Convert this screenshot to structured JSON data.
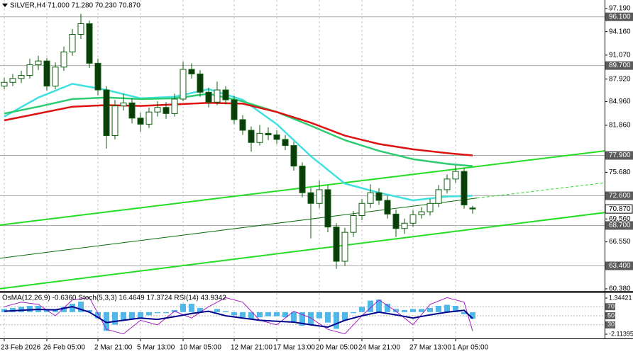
{
  "chart_data": [
    {
      "type": "candlestick",
      "title": "SILVER,H4  71.000 71.280 70.230 70.870",
      "categories": [
        "23 Feb 2026",
        null,
        null,
        null,
        null,
        "26 Feb 05:00",
        null,
        null,
        null,
        null,
        null,
        "2 Mar 21:00",
        null,
        null,
        null,
        null,
        "5 Mar 13:00",
        null,
        null,
        null,
        null,
        "10 Mar 05:00",
        null,
        null,
        null,
        null,
        null,
        "12 Mar 21:00",
        null,
        null,
        null,
        null,
        "17 Mar 13:00",
        null,
        null,
        null,
        null,
        "20 Mar 05:00",
        null,
        null,
        null,
        null,
        "24 Mar 21:00",
        null,
        null,
        null,
        null,
        null,
        "27 Mar 13:00",
        null,
        null,
        null,
        null,
        "1 Apr 05:00",
        null,
        null
      ],
      "open": [
        87.0,
        87.5,
        88.0,
        88.4,
        89.8,
        90.3,
        87.0,
        89.5,
        91.5,
        93.8,
        95.2,
        90.0,
        86.5,
        80.5,
        84.4,
        84.8,
        82.8,
        82.0,
        83.6,
        84.2,
        83.4,
        85.3,
        89.2,
        88.6,
        86.2,
        84.9,
        86.5,
        85.2,
        82.6,
        81.2,
        79.6,
        80.8,
        80.6,
        80.0,
        79.2,
        76.5,
        73.0,
        71.6,
        73.4,
        68.5,
        64.0,
        67.8,
        70.0,
        71.6,
        73.0,
        72.0,
        70.2,
        68.3,
        69.0,
        70.1,
        70.5,
        71.6,
        73.4,
        74.8,
        75.8,
        71.0
      ],
      "high": [
        88.1,
        88.6,
        89.0,
        90.6,
        91.0,
        90.7,
        90.1,
        92.2,
        94.5,
        96.5,
        95.6,
        90.6,
        87.0,
        85.2,
        86.0,
        85.4,
        83.5,
        84.2,
        85.0,
        84.9,
        86.0,
        90.2,
        90.0,
        89.1,
        86.8,
        87.6,
        87.0,
        85.7,
        83.2,
        81.7,
        81.9,
        81.6,
        81.2,
        80.6,
        79.7,
        77.0,
        73.6,
        74.6,
        74.0,
        69.0,
        68.4,
        70.6,
        72.2,
        74.1,
        73.6,
        72.6,
        70.8,
        69.6,
        70.7,
        71.1,
        72.2,
        74.0,
        75.4,
        76.6,
        76.2,
        71.28
      ],
      "low": [
        86.6,
        87.0,
        87.4,
        88.0,
        89.1,
        86.4,
        86.6,
        89.0,
        91.0,
        93.2,
        89.4,
        85.8,
        78.8,
        80.0,
        83.8,
        82.1,
        81.0,
        81.5,
        83.0,
        82.7,
        83.0,
        85.0,
        88.0,
        85.6,
        84.2,
        84.5,
        84.6,
        82.0,
        80.6,
        78.4,
        79.2,
        79.9,
        79.4,
        78.6,
        75.9,
        72.4,
        67.0,
        71.0,
        67.8,
        63.0,
        63.4,
        67.2,
        69.4,
        71.0,
        71.4,
        69.6,
        67.2,
        67.6,
        68.5,
        69.6,
        70.0,
        71.1,
        72.9,
        74.3,
        70.9,
        70.23
      ],
      "close": [
        87.5,
        88.0,
        88.4,
        89.8,
        90.3,
        87.0,
        89.5,
        91.5,
        93.8,
        95.2,
        90.0,
        86.5,
        80.5,
        84.4,
        84.8,
        82.8,
        82.0,
        83.6,
        84.2,
        83.4,
        85.3,
        89.2,
        88.6,
        86.2,
        84.9,
        86.5,
        85.2,
        82.6,
        81.2,
        79.6,
        80.8,
        80.6,
        80.0,
        79.2,
        76.5,
        73.0,
        71.6,
        73.4,
        68.5,
        64.0,
        67.8,
        70.0,
        71.6,
        73.0,
        72.0,
        70.2,
        68.3,
        69.0,
        70.1,
        70.5,
        71.6,
        73.4,
        74.8,
        75.8,
        71.4,
        70.87
      ],
      "up_color": "#ffffff",
      "down_color": "#0b3d0b",
      "wick_color": "#0b5e0b",
      "overlays": [
        {
          "color": "#40e0e0",
          "x": [
            0,
            4,
            8,
            12,
            16,
            20,
            24,
            28,
            32,
            36,
            40,
            44,
            48,
            52,
            55
          ],
          "values": [
            83.0,
            85.5,
            87.3,
            86.5,
            85.4,
            85.6,
            86.6,
            85.2,
            82.0,
            77.8,
            74.2,
            73.0,
            72.0,
            72.5,
            72.6
          ]
        },
        {
          "color": "#2ecc71",
          "x": [
            0,
            4,
            8,
            12,
            16,
            20,
            24,
            28,
            32,
            36,
            40,
            44,
            48,
            52,
            55
          ],
          "values": [
            83.4,
            84.3,
            85.3,
            85.5,
            85.3,
            85.4,
            86.0,
            85.0,
            83.6,
            81.8,
            79.9,
            78.5,
            77.4,
            76.8,
            76.5
          ]
        },
        {
          "color": "#dd1111",
          "x": [
            0,
            4,
            8,
            12,
            16,
            20,
            24,
            28,
            32,
            36,
            40,
            44,
            48,
            52,
            55
          ],
          "values": [
            82.5,
            83.4,
            84.3,
            84.5,
            84.4,
            84.6,
            84.8,
            84.7,
            83.6,
            82.2,
            80.5,
            79.4,
            78.7,
            78.2,
            77.9
          ]
        }
      ],
      "trendlines": [
        {
          "color": "#22dd22",
          "width": 2,
          "dashed": false,
          "x": [
            -0.5,
            70.5
          ],
          "values": [
            68.75,
            78.5
          ]
        },
        {
          "color": "#22dd22",
          "width": 2,
          "dashed": false,
          "x": [
            -0.5,
            70.5
          ],
          "values": [
            60.4,
            70.4
          ]
        },
        {
          "color": "#0a6e0a",
          "width": 1,
          "dashed": false,
          "x": [
            -0.5,
            55.5
          ],
          "values": [
            64.4,
            72.3
          ]
        },
        {
          "color": "#22dd22",
          "width": 1,
          "dashed": true,
          "x": [
            55.5,
            70.5
          ],
          "values": [
            72.3,
            74.3
          ]
        }
      ],
      "levels": [
        {
          "value": 96.1,
          "label": "96.100"
        },
        {
          "value": 89.7,
          "label": "89.700"
        },
        {
          "value": 77.9,
          "label": "77.900"
        },
        {
          "value": 72.6,
          "label": "72.600"
        },
        {
          "value": 68.7,
          "label": "68.700"
        },
        {
          "value": 63.4,
          "label": "63.400"
        }
      ],
      "last_price": {
        "value": 70.87,
        "label": "70.870"
      },
      "ylim": [
        60.19,
        98.31
      ],
      "yticks": [
        {
          "value": 97.19,
          "label": "97.190"
        },
        {
          "value": 94.16,
          "label": "94.160"
        },
        {
          "value": 91.07,
          "label": "91.070"
        },
        {
          "value": 87.92,
          "label": "87.920"
        },
        {
          "value": 84.96,
          "label": "84.960"
        },
        {
          "value": 81.86,
          "label": "81.860"
        },
        {
          "value": 75.68,
          "label": "75.680"
        },
        {
          "value": 69.56,
          "label": "69.560"
        },
        {
          "value": 66.55,
          "label": "66.550"
        },
        {
          "value": 60.38,
          "label": "60.380"
        }
      ]
    },
    {
      "type": "indicator",
      "title": "OsMA(12,26,9) -0.6360  Stoch(5,3,3) 16.4649 17.3724  RSI(14) 43.9342",
      "osma": {
        "color": "#4fb8e8",
        "values": [
          0.3,
          0.4,
          0.5,
          0.6,
          0.6,
          0.2,
          0.3,
          0.5,
          0.8,
          1.0,
          0.2,
          -0.6,
          -1.8,
          -1.2,
          -0.8,
          -0.7,
          -0.6,
          -0.3,
          -0.1,
          -0.1,
          0.2,
          0.8,
          0.8,
          0.4,
          0.1,
          0.3,
          0.1,
          -0.3,
          -0.5,
          -0.7,
          -0.5,
          -0.4,
          -0.4,
          -0.5,
          -0.9,
          -1.3,
          -1.2,
          -0.6,
          -1.0,
          -1.6,
          -0.8,
          -0.1,
          0.5,
          1.1,
          1.2,
          0.8,
          0.3,
          0.2,
          0.3,
          0.3,
          0.4,
          0.6,
          0.7,
          0.6,
          -0.2,
          -0.636
        ]
      },
      "series": [
        {
          "color": "#a020c0",
          "axis": "y2",
          "x": [
            0,
            2,
            4,
            6,
            8,
            10,
            12,
            14,
            16,
            18,
            20,
            22,
            24,
            26,
            28,
            30,
            32,
            34,
            36,
            38,
            40,
            42,
            44,
            46,
            48,
            50,
            52,
            54,
            55
          ],
          "values": [
            70,
            80,
            75,
            50,
            85,
            90,
            20,
            10,
            40,
            30,
            60,
            45,
            70,
            90,
            80,
            40,
            30,
            60,
            45,
            20,
            10,
            50,
            85,
            60,
            30,
            75,
            90,
            80,
            16.4649
          ]
        },
        {
          "color": "#00008b",
          "axis": "y2",
          "x": [
            0,
            2,
            4,
            6,
            8,
            10,
            12,
            14,
            16,
            18,
            20,
            22,
            24,
            26,
            28,
            30,
            32,
            34,
            36,
            38,
            40,
            42,
            44,
            46,
            48,
            50,
            52,
            54,
            55
          ],
          "values": [
            60,
            62,
            64,
            63,
            70,
            58,
            35,
            40,
            45,
            42,
            48,
            55,
            60,
            50,
            45,
            40,
            38,
            36,
            30,
            25,
            40,
            50,
            58,
            52,
            45,
            52,
            58,
            62,
            43.9342
          ]
        }
      ],
      "ylim": [
        -2.52,
        1.82
      ],
      "yticks": [
        1.34421,
        -2.11395
      ],
      "y2lim": [
        0,
        100
      ],
      "y2ticks": [
        70,
        50,
        30
      ]
    }
  ]
}
